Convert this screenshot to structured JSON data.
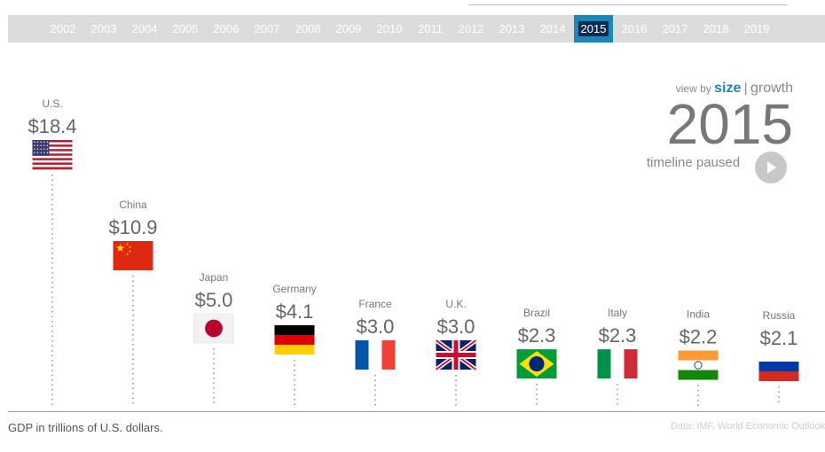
{
  "timeline": {
    "years": [
      "2002",
      "2003",
      "2004",
      "2005",
      "2006",
      "2007",
      "2008",
      "2009",
      "2010",
      "2011",
      "2012",
      "2013",
      "2014",
      "2015",
      "2016",
      "2017",
      "2018",
      "2019"
    ],
    "selected": "2015"
  },
  "view_toggle": {
    "prefix": "view by",
    "size": "size",
    "separator": "|",
    "growth": "growth"
  },
  "current_year": "2015",
  "timeline_status": "timeline paused",
  "footnote": "GDP in trillions of U.S. dollars.",
  "source": "Data: IMF, World Economic Outlook",
  "colors": {
    "accent": "#1a87b8",
    "selected_year_bg": "#0b2b4f",
    "bar_bg": "#dcdcdc"
  },
  "chart_data": {
    "type": "bar",
    "categories": [
      "U.S.",
      "China",
      "Japan",
      "Germany",
      "France",
      "U.K.",
      "Brazil",
      "Italy",
      "India",
      "Russia"
    ],
    "values": [
      18.4,
      10.9,
      5.0,
      4.1,
      3.0,
      3.0,
      2.3,
      2.3,
      2.2,
      2.1
    ],
    "value_labels": [
      "$18.4",
      "$10.9",
      "$5.0",
      "$4.1",
      "$3.0",
      "$3.0",
      "$2.3",
      "$2.3",
      "$2.2",
      "$2.1"
    ],
    "flags": [
      "us-flag",
      "china-flag",
      "japan-flag",
      "germany-flag",
      "france-flag",
      "uk-flag",
      "brazil-flag",
      "italy-flag",
      "india-flag",
      "russia-flag"
    ],
    "ylabel": "GDP in trillions of U.S. dollars."
  }
}
